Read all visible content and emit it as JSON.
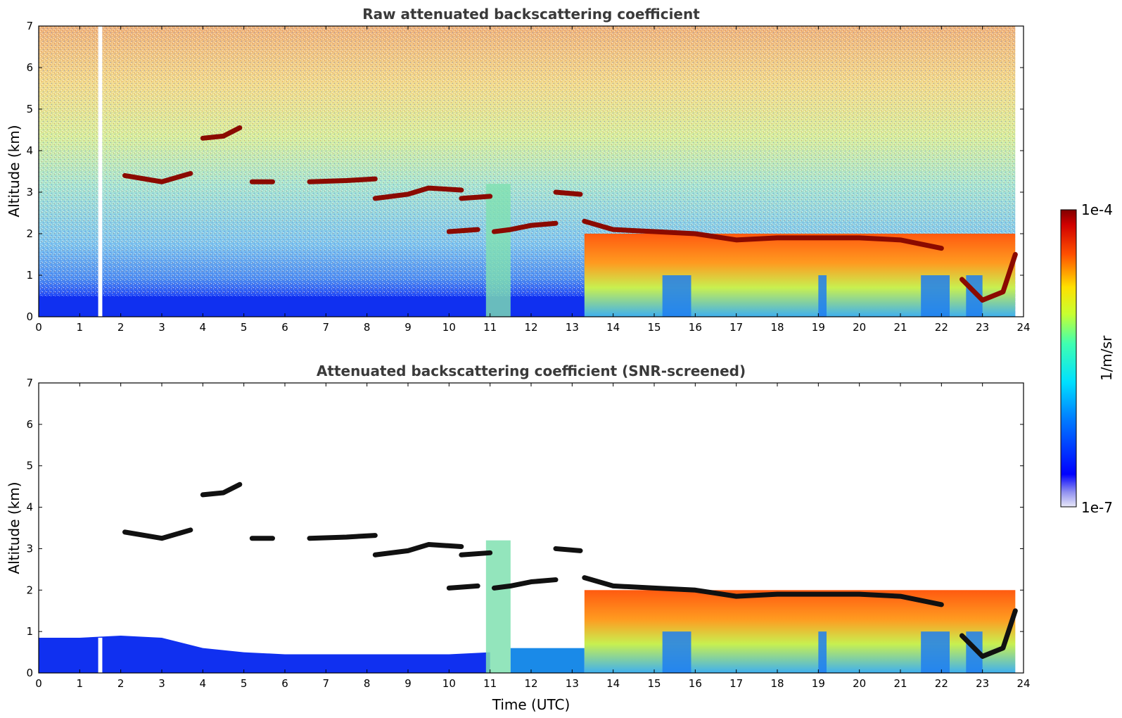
{
  "figure": {
    "colorbar": {
      "label": "1/m/sr",
      "max_label": "1e-4",
      "min_label": "1e-7",
      "scale": "log",
      "colormap": "jet",
      "range": [
        1e-07,
        0.0001
      ]
    },
    "shared_xlabel": "Time (UTC)"
  },
  "chart_data": [
    {
      "type": "heatmap",
      "title": "Raw attenuated backscattering coefficient",
      "xlabel": "",
      "ylabel": "Altitude (km)",
      "xlim": [
        0,
        24
      ],
      "ylim": [
        0,
        7
      ],
      "x_ticks": [
        "0",
        "1",
        "2",
        "3",
        "4",
        "5",
        "6",
        "7",
        "8",
        "9",
        "10",
        "11",
        "12",
        "13",
        "14",
        "15",
        "16",
        "17",
        "18",
        "19",
        "20",
        "21",
        "22",
        "23",
        "24"
      ],
      "y_ticks": [
        "0",
        "1",
        "2",
        "3",
        "4",
        "5",
        "6",
        "7"
      ],
      "data_gap": {
        "x_start": 1.45,
        "x_end": 1.55
      },
      "cloud_layers": [
        {
          "x": [
            2.1,
            3.0,
            3.7
          ],
          "y": [
            3.4,
            3.25,
            3.45
          ]
        },
        {
          "x": [
            4.0,
            4.5,
            4.9
          ],
          "y": [
            4.3,
            4.35,
            4.55
          ]
        },
        {
          "x": [
            5.2,
            5.7
          ],
          "y": [
            3.25,
            3.25
          ]
        },
        {
          "x": [
            6.6,
            7.5,
            8.2
          ],
          "y": [
            3.25,
            3.28,
            3.32
          ]
        },
        {
          "x": [
            8.2,
            9.0,
            9.5,
            10.3
          ],
          "y": [
            2.85,
            2.95,
            3.1,
            3.05
          ]
        },
        {
          "x": [
            10.3,
            11.0
          ],
          "y": [
            2.85,
            2.9
          ]
        },
        {
          "x": [
            10.0,
            10.7
          ],
          "y": [
            2.05,
            2.1
          ]
        },
        {
          "x": [
            11.1,
            11.5,
            12.0,
            12.6
          ],
          "y": [
            2.05,
            2.1,
            2.2,
            2.25
          ]
        },
        {
          "x": [
            12.6,
            13.2
          ],
          "y": [
            3.0,
            2.95
          ]
        },
        {
          "x": [
            13.3,
            14.0,
            15.0,
            16.0,
            17.0,
            18.0,
            19.0,
            20.0,
            21.0,
            22.0
          ],
          "y": [
            2.3,
            2.1,
            2.05,
            2.0,
            1.85,
            1.9,
            1.9,
            1.9,
            1.85,
            1.65
          ]
        },
        {
          "x": [
            22.5,
            23.0,
            23.5,
            23.8
          ],
          "y": [
            0.9,
            0.4,
            0.6,
            1.5
          ]
        }
      ],
      "aerosol_layer_top_km": 0.5,
      "elevated_backscatter_region": {
        "x_start": 13.3,
        "x_end": 23.8,
        "top_km": 2.0
      }
    },
    {
      "type": "heatmap",
      "title": "Attenuated backscattering coefficient (SNR-screened)",
      "xlabel": "Time (UTC)",
      "ylabel": "Altitude (km)",
      "xlim": [
        0,
        24
      ],
      "ylim": [
        0,
        7
      ],
      "x_ticks": [
        "0",
        "1",
        "2",
        "3",
        "4",
        "5",
        "6",
        "7",
        "8",
        "9",
        "10",
        "11",
        "12",
        "13",
        "14",
        "15",
        "16",
        "17",
        "18",
        "19",
        "20",
        "21",
        "22",
        "23",
        "24"
      ],
      "y_ticks": [
        "0",
        "1",
        "2",
        "3",
        "4",
        "5",
        "6",
        "7"
      ],
      "data_gap": {
        "x_start": 1.45,
        "x_end": 1.55
      },
      "screened": true,
      "boundary_layer_top": {
        "x": [
          0,
          1,
          2,
          3,
          4,
          5,
          6,
          8,
          10,
          11
        ],
        "y": [
          0.85,
          0.85,
          0.9,
          0.85,
          0.6,
          0.5,
          0.45,
          0.45,
          0.45,
          0.5
        ]
      },
      "cloud_layers": [
        {
          "x": [
            2.1,
            3.0,
            3.7
          ],
          "y": [
            3.4,
            3.25,
            3.45
          ]
        },
        {
          "x": [
            4.0,
            4.5,
            4.9
          ],
          "y": [
            4.3,
            4.35,
            4.55
          ]
        },
        {
          "x": [
            5.2,
            5.7
          ],
          "y": [
            3.25,
            3.25
          ]
        },
        {
          "x": [
            6.6,
            7.5,
            8.2
          ],
          "y": [
            3.25,
            3.28,
            3.32
          ]
        },
        {
          "x": [
            8.2,
            9.0,
            9.5,
            10.3
          ],
          "y": [
            2.85,
            2.95,
            3.1,
            3.05
          ]
        },
        {
          "x": [
            10.3,
            11.0
          ],
          "y": [
            2.85,
            2.9
          ]
        },
        {
          "x": [
            10.0,
            10.7
          ],
          "y": [
            2.05,
            2.1
          ]
        },
        {
          "x": [
            11.1,
            11.5,
            12.0,
            12.6
          ],
          "y": [
            2.05,
            2.1,
            2.2,
            2.25
          ]
        },
        {
          "x": [
            12.6,
            13.2
          ],
          "y": [
            3.0,
            2.95
          ]
        },
        {
          "x": [
            13.3,
            14.0,
            15.0,
            16.0,
            17.0,
            18.0,
            19.0,
            20.0,
            21.0,
            22.0
          ],
          "y": [
            2.3,
            2.1,
            2.05,
            2.0,
            1.85,
            1.9,
            1.9,
            1.9,
            1.85,
            1.65
          ]
        },
        {
          "x": [
            22.5,
            23.0,
            23.5,
            23.8
          ],
          "y": [
            0.9,
            0.4,
            0.6,
            1.5
          ]
        }
      ]
    }
  ]
}
